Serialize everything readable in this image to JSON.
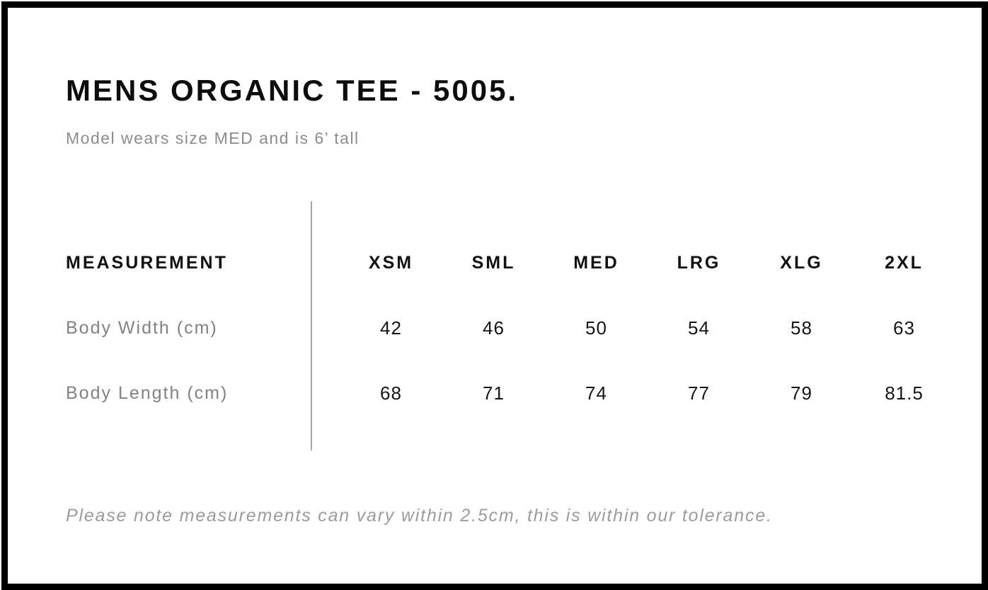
{
  "page": {
    "title": "MENS ORGANIC TEE - 5005.",
    "subtitle": "Model wears size MED and is 6’ tall",
    "note": "Please note measurements can vary within 2.5cm, this is within our tolerance."
  },
  "size_table": {
    "header": [
      "MEASUREMENT",
      "XSM",
      "SML",
      "MED",
      "LRG",
      "XLG",
      "2XL"
    ],
    "rows": [
      {
        "label": "Body Width (cm)",
        "values": [
          "42",
          "46",
          "50",
          "54",
          "58",
          "63"
        ]
      },
      {
        "label": "Body Length (cm)",
        "values": [
          "68",
          "71",
          "74",
          "77",
          "79",
          "81.5"
        ]
      }
    ]
  },
  "colors": {
    "frame_border": "#000000",
    "title_text": "#0d0d0d",
    "header_text": "#111111",
    "value_text": "#161616",
    "muted_text": "#8c8c8c",
    "note_text": "#9c9c9c",
    "divider": "#a6a6a6",
    "background": "#ffffff"
  }
}
